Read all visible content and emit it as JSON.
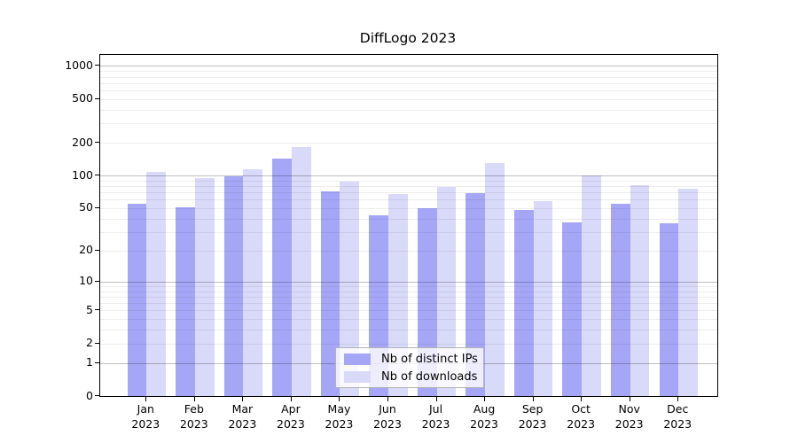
{
  "title": "DiffLogo 2023",
  "legend": {
    "items": [
      {
        "label": "Nb of distinct IPs",
        "color": "#a6a6f7"
      },
      {
        "label": "Nb of downloads",
        "color": "#d9d9f9"
      }
    ]
  },
  "y_axis": {
    "scale": "log10(value+1)",
    "ticks": [
      {
        "value": 0,
        "label": "0"
      },
      {
        "value": 1,
        "label": "1"
      },
      {
        "value": 2,
        "label": "2"
      },
      {
        "value": 5,
        "label": "5"
      },
      {
        "value": 10,
        "label": "10"
      },
      {
        "value": 20,
        "label": "20"
      },
      {
        "value": 50,
        "label": "50"
      },
      {
        "value": 100,
        "label": "100"
      },
      {
        "value": 200,
        "label": "200"
      },
      {
        "value": 500,
        "label": "500"
      },
      {
        "value": 1000,
        "label": "1000"
      }
    ],
    "major_grid_values": [
      1,
      10,
      100,
      1000
    ],
    "minor_grid_values": [
      2,
      3,
      4,
      5,
      6,
      7,
      8,
      9,
      20,
      30,
      40,
      50,
      60,
      70,
      80,
      90,
      200,
      300,
      400,
      500,
      600,
      700,
      800,
      900
    ]
  },
  "chart_data": {
    "type": "bar",
    "title": "DiffLogo 2023",
    "categories": [
      "Jan 2023",
      "Feb 2023",
      "Mar 2023",
      "Apr 2023",
      "May 2023",
      "Jun 2023",
      "Jul 2023",
      "Aug 2023",
      "Sep 2023",
      "Oct 2023",
      "Nov 2023",
      "Dec 2023"
    ],
    "series": [
      {
        "name": "Nb of distinct IPs",
        "key": "distinct-ips",
        "color": "#a6a6f7",
        "values": [
          55,
          51,
          99,
          144,
          71,
          43,
          50,
          69,
          48,
          37,
          55,
          36
        ]
      },
      {
        "name": "Nb of downloads",
        "key": "downloads",
        "color": "#d9d9f9",
        "values": [
          108,
          95,
          115,
          183,
          88,
          68,
          78,
          131,
          58,
          101,
          82,
          75
        ]
      }
    ],
    "xlabel": "",
    "ylabel": "",
    "yscale": "log10(y+1)",
    "ylim": [
      0,
      1258
    ],
    "yticks": [
      0,
      1,
      2,
      5,
      10,
      20,
      50,
      100,
      200,
      500,
      1000
    ],
    "grid": true,
    "legend_position": "inside-bottom-center"
  }
}
